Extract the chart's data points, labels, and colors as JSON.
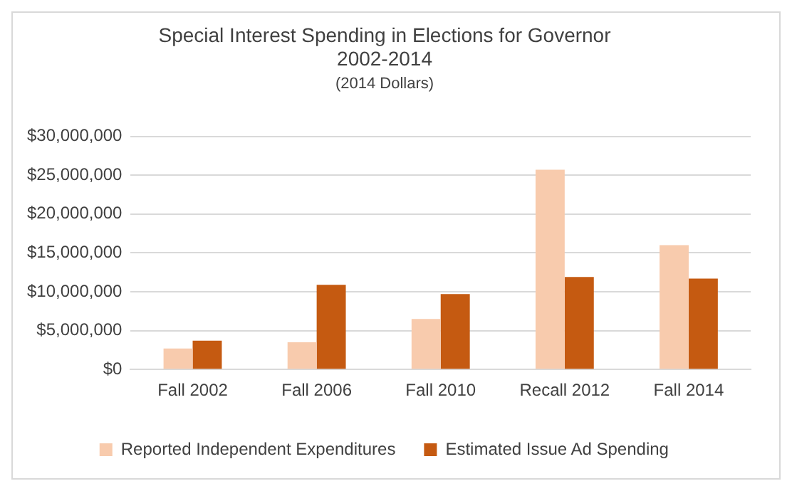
{
  "chart_data": {
    "type": "bar",
    "title": "Special Interest Spending in Elections for Governor\n2002-2014",
    "subtitle": "(2014 Dollars)",
    "categories": [
      "Fall 2002",
      "Fall 2006",
      "Fall 2010",
      "Recall 2012",
      "Fall 2014"
    ],
    "series": [
      {
        "name": "Reported Independent Expenditures",
        "color": "#f8cbad",
        "values": [
          2700000,
          3500000,
          6500000,
          25700000,
          16000000
        ]
      },
      {
        "name": "Estimated Issue Ad Spending",
        "color": "#c55a11",
        "values": [
          3700000,
          10900000,
          9700000,
          11900000,
          11700000
        ]
      }
    ],
    "ylim": [
      0,
      30000000
    ],
    "yticks": [
      {
        "value": 0,
        "label": "$0"
      },
      {
        "value": 5000000,
        "label": "$5,000,000"
      },
      {
        "value": 10000000,
        "label": "$10,000,000"
      },
      {
        "value": 15000000,
        "label": "$15,000,000"
      },
      {
        "value": 20000000,
        "label": "$20,000,000"
      },
      {
        "value": 25000000,
        "label": "$25,000,000"
      },
      {
        "value": 30000000,
        "label": "$30,000,000"
      }
    ],
    "grid": "y",
    "legend": "bottom"
  }
}
